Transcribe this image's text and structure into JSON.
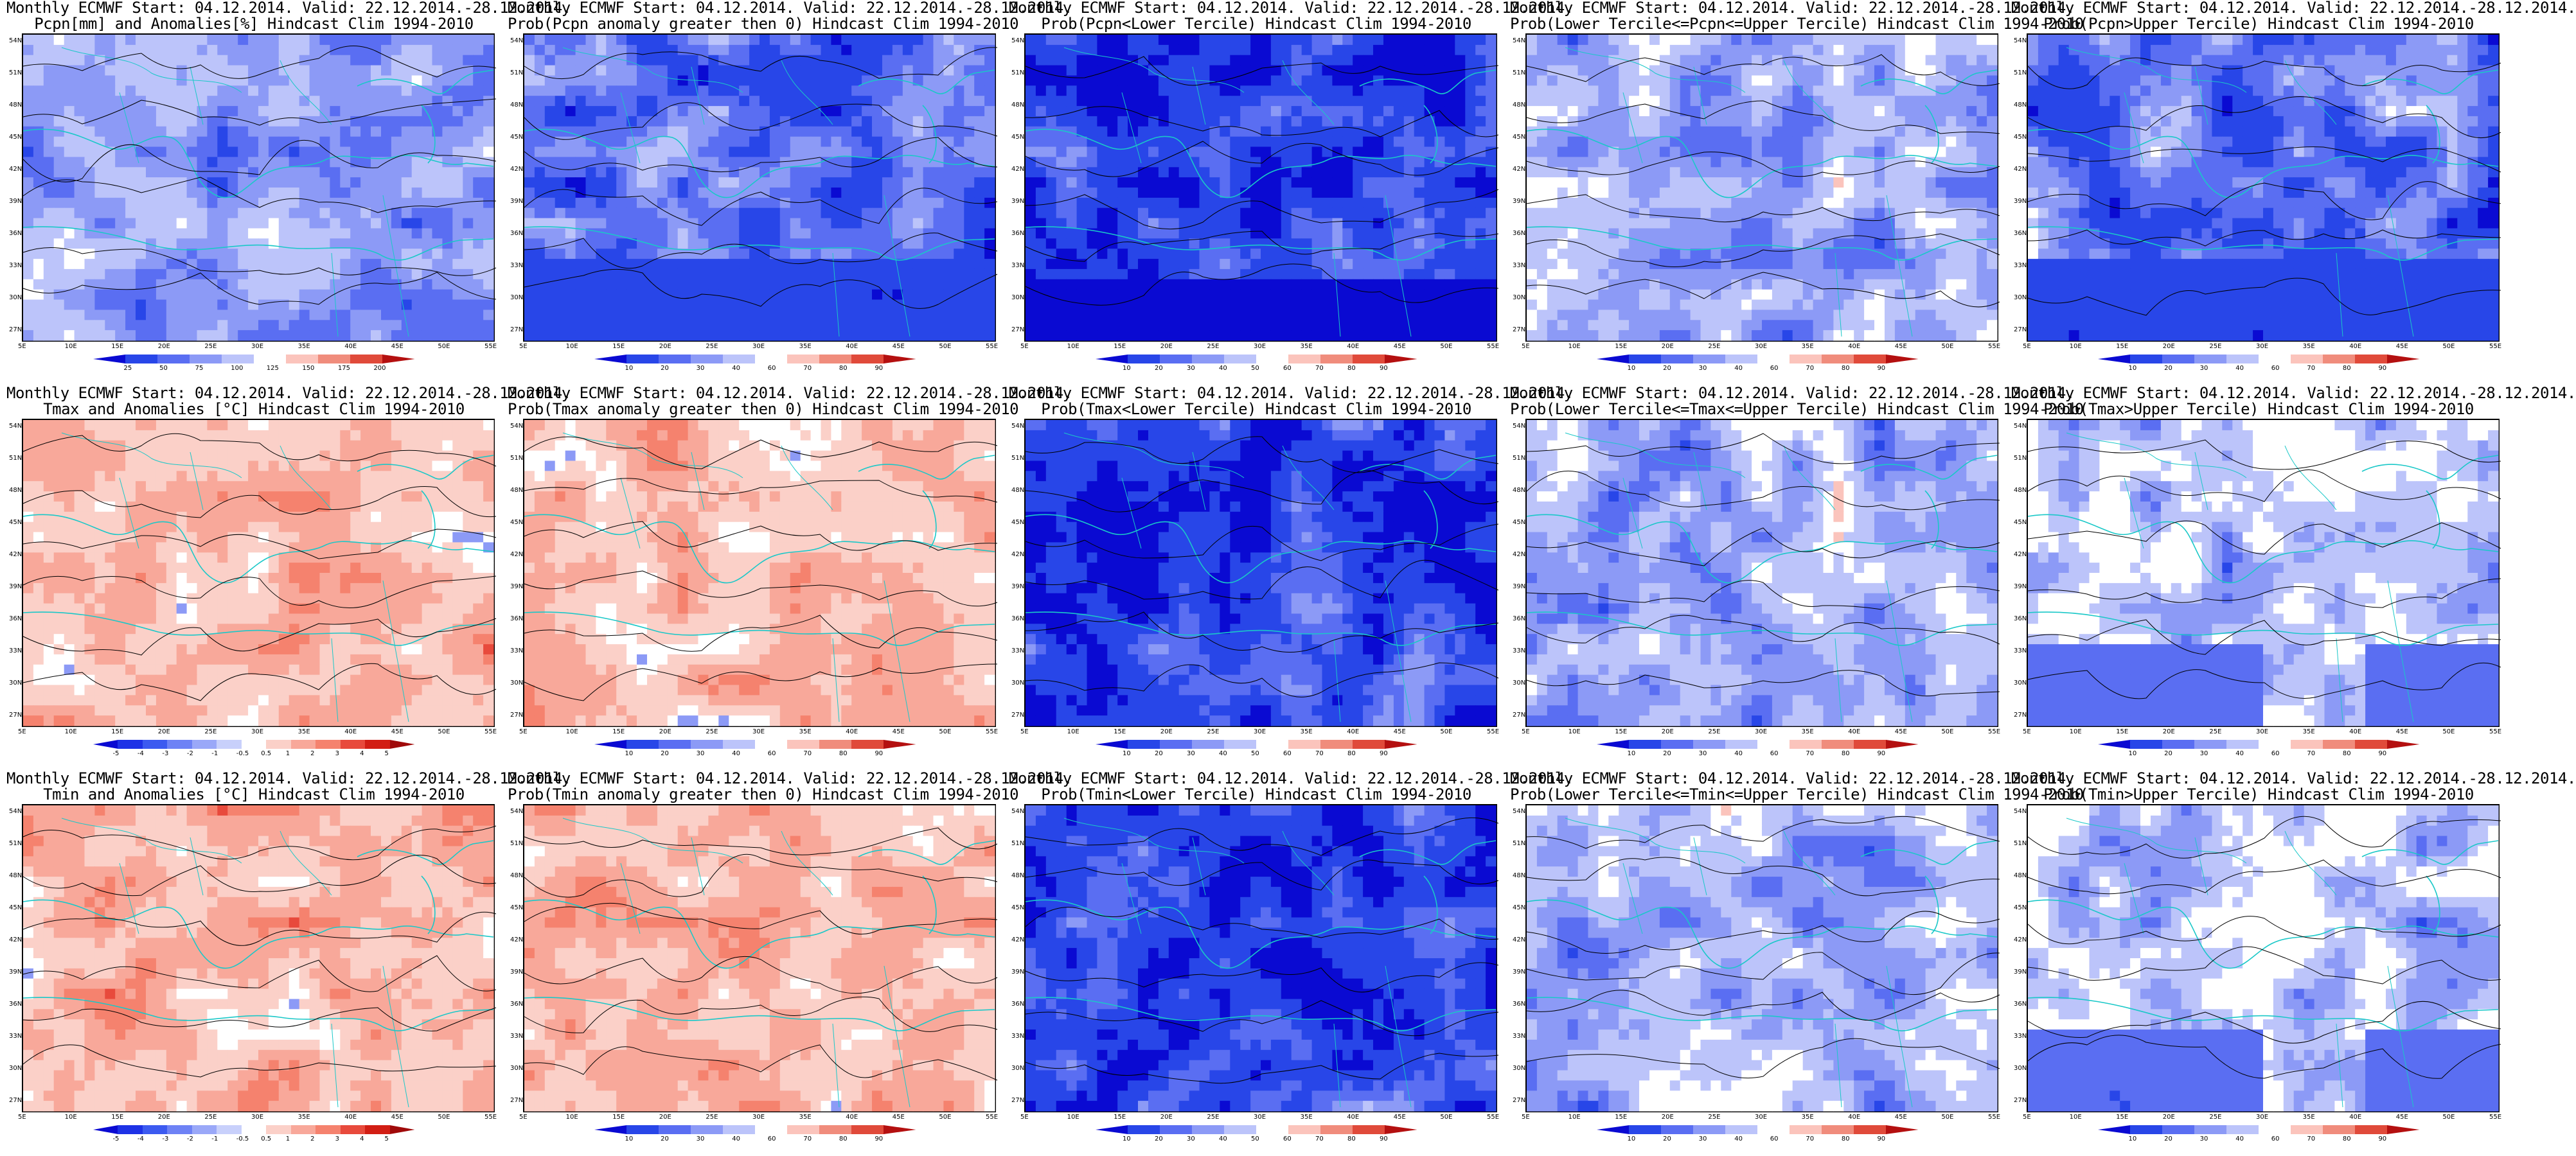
{
  "header": "Monthly ECMWF Start: 04.12.2014. Valid: 22.12.2014.-28.12.2014.",
  "lat_labels": [
    "54N",
    "51N",
    "48N",
    "45N",
    "42N",
    "39N",
    "36N",
    "33N",
    "30N",
    "27N"
  ],
  "lon_labels": [
    "5E",
    "10E",
    "15E",
    "20E",
    "25E",
    "30E",
    "35E",
    "40E",
    "45E",
    "50E",
    "55E"
  ],
  "diverging_colors": [
    "#0a0ad2",
    "#1e32e6",
    "#3c5af0",
    "#6e82f5",
    "#9aa8f8",
    "#c8d0fb",
    "#ffffff",
    "#fbd0c8",
    "#f8a89a",
    "#f5826e",
    "#e84a3c",
    "#d21e14",
    "#a00a0a"
  ],
  "prob_colors": [
    "#0a0ad2",
    "#2846e8",
    "#5a6ef2",
    "#8c9af6",
    "#bcc4fa",
    "#ffffff",
    "#fbc4bc",
    "#f08c7c",
    "#e04a3a",
    "#b41010"
  ],
  "panels": [
    {
      "title": "Monthly ECMWF Start: 04.12.2014. Valid: 22.12.2014.-28.12.2014.\nPcpn[mm] and Anomalies[%] Hindcast Clim 1994-2010",
      "ticks": [
        "25",
        "50",
        "75",
        "100",
        "125",
        "150",
        "175",
        "200"
      ],
      "style": "precip-anom"
    },
    {
      "title": "Monthly ECMWF Start: 04.12.2014. Valid: 22.12.2014.-28.12.2014.\nProb(Pcpn anomaly greater then 0) Hindcast Clim 1994-2010",
      "ticks": [
        "10",
        "20",
        "30",
        "40",
        "60",
        "70",
        "80",
        "90"
      ],
      "style": "blue-heavy"
    },
    {
      "title": "Monthly ECMWF Start: 04.12.2014. Valid: 22.12.2014.-28.12.2014.\nProb(Pcpn<Lower Tercile) Hindcast Clim 1994-2010",
      "ticks": [
        "10",
        "20",
        "30",
        "40",
        "50",
        "60",
        "70",
        "80",
        "90"
      ],
      "style": "blue-dark"
    },
    {
      "title": "Monthly ECMWF Start: 04.12.2014. Valid: 22.12.2014.-28.12.2014.\nProb(Lower Tercile<=Pcpn<=Upper Tercile) Hindcast Clim 1994-2010",
      "ticks": [
        "10",
        "20",
        "30",
        "40",
        "60",
        "70",
        "80",
        "90"
      ],
      "style": "mixed"
    },
    {
      "title": "Monthly ECMWF Start: 04.12.2014. Valid: 22.12.2014.-28.12.2014.\nProb(Pcpn>Upper Tercile) Hindcast Clim 1994-2010",
      "ticks": [
        "10",
        "20",
        "30",
        "40",
        "60",
        "70",
        "80",
        "90"
      ],
      "style": "blue-heavy"
    },
    {
      "title": "Monthly ECMWF Start: 04.12.2014. Valid: 22.12.2014.-28.12.2014.\nTmax and Anomalies [°C] Hindcast Clim 1994-2010",
      "ticks": [
        "-5",
        "-4",
        "-3",
        "-2",
        "-1",
        "-0.5",
        "0.5",
        "1",
        "2",
        "3",
        "4",
        "5"
      ],
      "style": "red-heavy"
    },
    {
      "title": "Monthly ECMWF Start: 04.12.2014. Valid: 22.12.2014.-28.12.2014.\nProb(Tmax anomaly greater then 0) Hindcast Clim 1994-2010",
      "ticks": [
        "10",
        "20",
        "30",
        "40",
        "60",
        "70",
        "80",
        "90"
      ],
      "style": "red-heavy"
    },
    {
      "title": "Monthly ECMWF Start: 04.12.2014. Valid: 22.12.2014.-28.12.2014.\nProb(Tmax<Lower Tercile) Hindcast Clim 1994-2010",
      "ticks": [
        "10",
        "20",
        "30",
        "40",
        "50",
        "60",
        "70",
        "80",
        "90"
      ],
      "style": "blue-dark"
    },
    {
      "title": "Monthly ECMWF Start: 04.12.2014. Valid: 22.12.2014.-28.12.2014.\nProb(Lower Tercile<=Tmax<=Upper Tercile) Hindcast Clim 1994-2010",
      "ticks": [
        "10",
        "20",
        "30",
        "40",
        "60",
        "70",
        "80",
        "90"
      ],
      "style": "mixed"
    },
    {
      "title": "Monthly ECMWF Start: 04.12.2014. Valid: 22.12.2014.-28.12.2014.\nProb(Tmax>Upper Tercile) Hindcast Clim 1994-2010",
      "ticks": [
        "10",
        "20",
        "30",
        "40",
        "60",
        "70",
        "80",
        "90"
      ],
      "style": "blue-light"
    },
    {
      "title": "Monthly ECMWF Start: 04.12.2014. Valid: 22.12.2014.-28.12.2014.\nTmin and Anomalies [°C] Hindcast Clim 1994-2010",
      "ticks": [
        "-5",
        "-4",
        "-3",
        "-2",
        "-1",
        "-0.5",
        "0.5",
        "1",
        "2",
        "3",
        "4",
        "5"
      ],
      "style": "red-heavy"
    },
    {
      "title": "Monthly ECMWF Start: 04.12.2014. Valid: 22.12.2014.-28.12.2014.\nProb(Tmin anomaly greater then 0) Hindcast Clim 1994-2010",
      "ticks": [
        "10",
        "20",
        "30",
        "40",
        "60",
        "70",
        "80",
        "90"
      ],
      "style": "red-heavy"
    },
    {
      "title": "Monthly ECMWF Start: 04.12.2014. Valid: 22.12.2014.-28.12.2014.\nProb(Tmin<Lower Tercile) Hindcast Clim 1994-2010",
      "ticks": [
        "10",
        "20",
        "30",
        "40",
        "50",
        "60",
        "70",
        "80",
        "90"
      ],
      "style": "blue-dark"
    },
    {
      "title": "Monthly ECMWF Start: 04.12.2014. Valid: 22.12.2014.-28.12.2014.\nProb(Lower Tercile<=Tmin<=Upper Tercile) Hindcast Clim 1994-2010",
      "ticks": [
        "10",
        "20",
        "30",
        "40",
        "60",
        "70",
        "80",
        "90"
      ],
      "style": "mixed"
    },
    {
      "title": "Monthly ECMWF Start: 04.12.2014. Valid: 22.12.2014.-28.12.2014.\nProb(Tmin>Upper Tercile) Hindcast Clim 1994-2010",
      "ticks": [
        "10",
        "20",
        "30",
        "40",
        "60",
        "70",
        "80",
        "90"
      ],
      "style": "blue-light"
    }
  ]
}
